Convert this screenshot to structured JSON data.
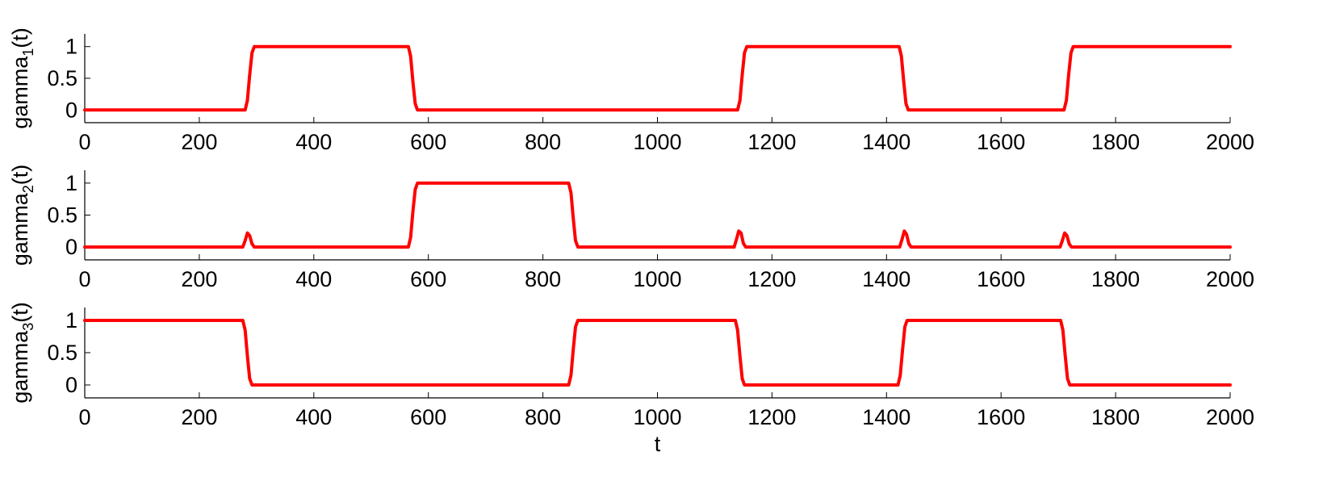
{
  "chart_data": [
    {
      "type": "line",
      "ylabel_main": "gamma",
      "ylabel_sub": "1",
      "ylabel_suffix": "(t)",
      "xlabel": "",
      "xlim": [
        0,
        2000
      ],
      "ylim": [
        -0.2,
        1.2
      ],
      "xticks": [
        0,
        200,
        400,
        600,
        800,
        1000,
        1200,
        1400,
        1600,
        1800,
        2000
      ],
      "yticks": [
        0,
        0.5,
        1
      ],
      "ytick_labels": [
        "0",
        "0.5",
        "1"
      ],
      "color": "#ff0000",
      "series": [
        {
          "x": [
            0,
            280,
            284,
            288,
            292,
            296,
            565,
            569,
            573,
            577,
            581,
            1140,
            1144,
            1148,
            1152,
            1156,
            1422,
            1426,
            1430,
            1434,
            1438,
            1710,
            1714,
            1718,
            1722,
            1726,
            2000
          ],
          "y": [
            0,
            0,
            0.15,
            0.55,
            0.9,
            1,
            1,
            0.85,
            0.45,
            0.1,
            0,
            0,
            0.15,
            0.55,
            0.9,
            1,
            1,
            0.85,
            0.45,
            0.1,
            0,
            0,
            0.15,
            0.55,
            0.9,
            1,
            1
          ]
        }
      ]
    },
    {
      "type": "line",
      "ylabel_main": "gamma",
      "ylabel_sub": "2",
      "ylabel_suffix": "(t)",
      "xlabel": "",
      "xlim": [
        0,
        2000
      ],
      "ylim": [
        -0.2,
        1.2
      ],
      "xticks": [
        0,
        200,
        400,
        600,
        800,
        1000,
        1200,
        1400,
        1600,
        1800,
        2000
      ],
      "yticks": [
        0,
        0.5,
        1
      ],
      "ytick_labels": [
        "0",
        "0.5",
        "1"
      ],
      "color": "#ff0000",
      "series": [
        {
          "x": [
            0,
            276,
            280,
            284,
            288,
            292,
            296,
            565,
            569,
            573,
            577,
            581,
            845,
            849,
            853,
            857,
            861,
            1134,
            1138,
            1142,
            1146,
            1150,
            1154,
            1423,
            1427,
            1431,
            1435,
            1439,
            1443,
            1703,
            1707,
            1711,
            1715,
            1719,
            1723,
            2000
          ],
          "y": [
            0,
            0,
            0.1,
            0.22,
            0.18,
            0.05,
            0,
            0,
            0.15,
            0.55,
            0.9,
            1,
            1,
            0.85,
            0.45,
            0.1,
            0,
            0,
            0.12,
            0.25,
            0.22,
            0.06,
            0,
            0,
            0.12,
            0.25,
            0.2,
            0.05,
            0,
            0,
            0.1,
            0.22,
            0.18,
            0.05,
            0,
            0
          ]
        }
      ]
    },
    {
      "type": "line",
      "ylabel_main": "gamma",
      "ylabel_sub": "3",
      "ylabel_suffix": "(t)",
      "xlabel": "t",
      "xlim": [
        0,
        2000
      ],
      "ylim": [
        -0.2,
        1.2
      ],
      "xticks": [
        0,
        200,
        400,
        600,
        800,
        1000,
        1200,
        1400,
        1600,
        1800,
        2000
      ],
      "yticks": [
        0,
        0.5,
        1
      ],
      "ytick_labels": [
        "0",
        "0.5",
        "1"
      ],
      "color": "#ff0000",
      "series": [
        {
          "x": [
            0,
            276,
            280,
            284,
            288,
            292,
            845,
            849,
            853,
            857,
            861,
            1136,
            1140,
            1144,
            1148,
            1152,
            1420,
            1424,
            1428,
            1432,
            1436,
            1704,
            1708,
            1712,
            1716,
            1720,
            2000
          ],
          "y": [
            1,
            1,
            0.85,
            0.45,
            0.1,
            0,
            0,
            0.15,
            0.55,
            0.9,
            1,
            1,
            0.85,
            0.45,
            0.1,
            0,
            0,
            0.15,
            0.55,
            0.9,
            1,
            1,
            0.85,
            0.45,
            0.1,
            0,
            0
          ]
        }
      ]
    }
  ]
}
